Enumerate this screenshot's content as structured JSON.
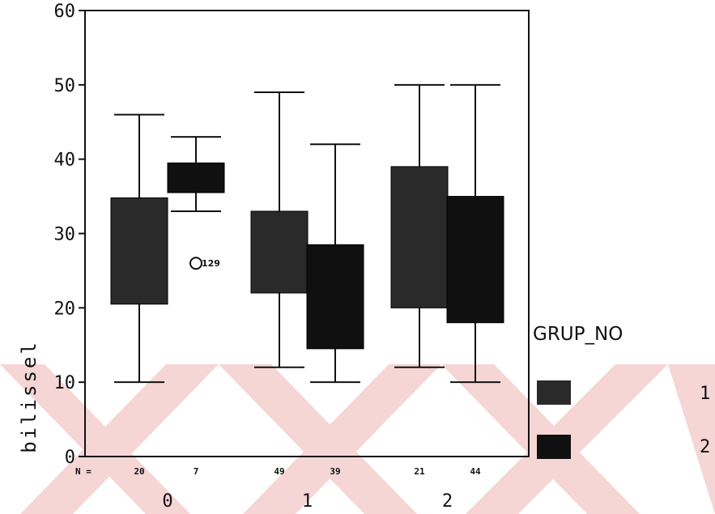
{
  "chart_data": {
    "type": "boxplot",
    "xlabel": "",
    "ylabel": "bilissel",
    "ylim": [
      0,
      60
    ],
    "yticks": [
      "0",
      "10",
      "20",
      "30",
      "40",
      "50",
      "60"
    ],
    "categories": [
      "0",
      "1",
      "2"
    ],
    "n_prefix": "N =",
    "legend_title": "GRUP_NO",
    "series": [
      {
        "name": "1",
        "color": "#2a2a2a",
        "boxes": [
          {
            "category": "0",
            "n": "20",
            "whisker_low": 10,
            "q1": 20.5,
            "q3": 34.8,
            "whisker_high": 46
          },
          {
            "category": "1",
            "n": "49",
            "whisker_low": 12,
            "q1": 22,
            "q3": 33,
            "whisker_high": 49
          },
          {
            "category": "2",
            "n": "21",
            "whisker_low": 12,
            "q1": 20,
            "q3": 39,
            "whisker_high": 50
          }
        ]
      },
      {
        "name": "2",
        "color": "#101010",
        "boxes": [
          {
            "category": "0",
            "n": "7",
            "whisker_low": 33,
            "q1": 35.5,
            "q3": 39.5,
            "whisker_high": 43
          },
          {
            "category": "1",
            "n": "39",
            "whisker_low": 10,
            "q1": 14.5,
            "q3": 28.5,
            "whisker_high": 42
          },
          {
            "category": "2",
            "n": "44",
            "whisker_low": 10,
            "q1": 18,
            "q3": 35,
            "whisker_high": 50
          }
        ]
      }
    ],
    "outliers": [
      {
        "category": "0",
        "series": "2",
        "value": 26,
        "label": "129"
      }
    ]
  },
  "watermark_color": "#f6d5d5"
}
